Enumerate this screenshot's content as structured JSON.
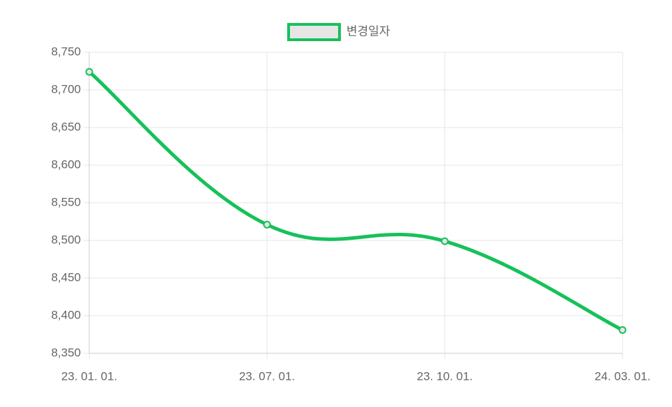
{
  "chart_data": {
    "type": "line",
    "categories": [
      "23. 01. 01.",
      "23. 07. 01.",
      "23. 10. 01.",
      "24. 03. 01."
    ],
    "series": [
      {
        "name": "변경일자",
        "color": "#16c15a",
        "values": [
          8724,
          8521,
          8499,
          8381
        ]
      }
    ],
    "ylim": [
      8350,
      8750
    ],
    "yticks": [
      {
        "value": 8350,
        "label": "8,350"
      },
      {
        "value": 8400,
        "label": "8,400"
      },
      {
        "value": 8450,
        "label": "8,450"
      },
      {
        "value": 8500,
        "label": "8,500"
      },
      {
        "value": 8550,
        "label": "8,550"
      },
      {
        "value": 8600,
        "label": "8,600"
      },
      {
        "value": 8650,
        "label": "8,650"
      },
      {
        "value": 8700,
        "label": "8,700"
      },
      {
        "value": 8750,
        "label": "8,750"
      }
    ],
    "grid": true,
    "legend": "top"
  }
}
